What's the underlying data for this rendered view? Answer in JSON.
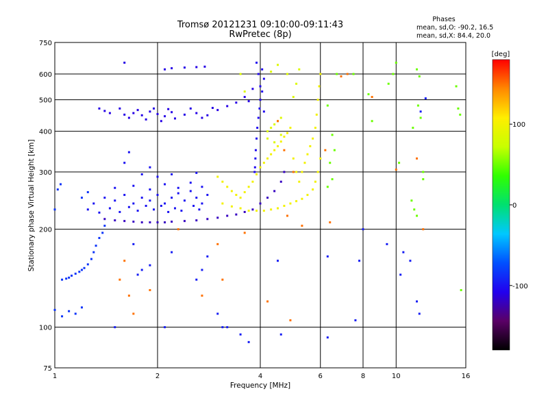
{
  "chart_data": {
    "type": "scatter",
    "title": "Tromsø 20121231 09:10:00-09:11:43",
    "subtitle": "RwPretec (8p)",
    "info": {
      "heading": "Phases",
      "line1": "mean, sd,O: -90.2, 16.5",
      "line2": "mean, sd,X:  84.4, 20.0"
    },
    "xlabel": "Frequency [MHz]",
    "ylabel": "Stationary phase Virtual Height [km]",
    "x_scale": "log",
    "y_scale": "log",
    "xlim": [
      1,
      16
    ],
    "ylim": [
      75,
      750
    ],
    "x_ticks": [
      1,
      2,
      4,
      6,
      8,
      10,
      16
    ],
    "x_tick_labels": [
      "1",
      "2",
      "4",
      "6",
      "8",
      "10",
      "16"
    ],
    "y_ticks": [
      75,
      100,
      200,
      300,
      400,
      500,
      600,
      750
    ],
    "y_tick_labels": [
      "75",
      "100",
      "200",
      "300",
      "400",
      "500",
      "600",
      "750"
    ],
    "grid": true,
    "colorbar": {
      "label": "[deg]",
      "range": [
        -180,
        180
      ],
      "ticks": [
        100,
        0,
        -100
      ],
      "tick_labels": [
        "100",
        "0",
        "-100"
      ],
      "colormap": [
        "#000000",
        "#5a0066",
        "#2200ee",
        "#0050ff",
        "#00c8ff",
        "#00e070",
        "#30ff00",
        "#c8ff00",
        "#ffee00",
        "#ff8800",
        "#ff0000"
      ]
    },
    "series": [
      {
        "values": [
          [
            1.6,
            450
          ],
          [
            1.7,
            455
          ],
          [
            1.8,
            448
          ],
          [
            1.9,
            460
          ],
          [
            2.0,
            452
          ],
          [
            2.1,
            445
          ],
          [
            2.2,
            458
          ],
          [
            2.4,
            450
          ],
          [
            2.6,
            455
          ],
          [
            2.8,
            448
          ],
          [
            1.55,
            470
          ],
          [
            1.65,
            440
          ],
          [
            1.75,
            465
          ],
          [
            1.85,
            435
          ],
          [
            1.95,
            470
          ],
          [
            2.05,
            430
          ],
          [
            2.15,
            468
          ],
          [
            2.25,
            438
          ],
          [
            2.5,
            470
          ],
          [
            2.7,
            440
          ],
          [
            1.35,
            470
          ],
          [
            1.4,
            462
          ],
          [
            1.45,
            455
          ],
          [
            2.9,
            472
          ],
          [
            3.0,
            465
          ],
          [
            3.2,
            478
          ],
          [
            3.4,
            490
          ],
          [
            3.6,
            510
          ],
          [
            3.7,
            495
          ],
          [
            3.8,
            540
          ],
          [
            2.1,
            620
          ],
          [
            2.2,
            625
          ],
          [
            2.4,
            628
          ],
          [
            2.6,
            630
          ],
          [
            2.75,
            632
          ],
          [
            1.6,
            650
          ]
        ],
        "phase": -110
      },
      {
        "values": [
          [
            1.3,
            240
          ],
          [
            1.4,
            250
          ],
          [
            1.5,
            245
          ],
          [
            1.6,
            255
          ],
          [
            1.7,
            240
          ],
          [
            1.8,
            250
          ],
          [
            1.9,
            245
          ],
          [
            2.0,
            255
          ],
          [
            2.1,
            240
          ],
          [
            2.2,
            250
          ],
          [
            2.3,
            258
          ],
          [
            2.4,
            245
          ],
          [
            2.5,
            262
          ],
          [
            2.6,
            250
          ],
          [
            2.7,
            240
          ],
          [
            2.8,
            255
          ],
          [
            1.25,
            230
          ],
          [
            1.35,
            225
          ],
          [
            1.45,
            232
          ],
          [
            1.55,
            226
          ],
          [
            1.65,
            234
          ],
          [
            1.75,
            228
          ],
          [
            1.85,
            236
          ],
          [
            1.95,
            230
          ],
          [
            2.05,
            236
          ],
          [
            2.15,
            226
          ],
          [
            2.25,
            232
          ],
          [
            2.35,
            228
          ],
          [
            2.55,
            236
          ],
          [
            2.65,
            230
          ],
          [
            1.5,
            268
          ],
          [
            1.7,
            272
          ],
          [
            1.9,
            265
          ],
          [
            2.1,
            275
          ],
          [
            2.3,
            268
          ],
          [
            2.5,
            278
          ],
          [
            2.7,
            270
          ],
          [
            1.8,
            295
          ],
          [
            2.0,
            290
          ],
          [
            2.2,
            295
          ],
          [
            2.6,
            298
          ],
          [
            1.6,
            320
          ],
          [
            1.65,
            345
          ],
          [
            1.9,
            310
          ]
        ],
        "phase": -100
      },
      {
        "values": [
          [
            1.1,
            142
          ],
          [
            1.15,
            146
          ],
          [
            1.2,
            150
          ],
          [
            1.25,
            156
          ],
          [
            1.28,
            162
          ],
          [
            1.3,
            170
          ],
          [
            1.32,
            178
          ],
          [
            1.35,
            188
          ],
          [
            1.38,
            195
          ],
          [
            1.4,
            205
          ],
          [
            1.05,
            140
          ],
          [
            1.08,
            141
          ],
          [
            1.12,
            144
          ],
          [
            1.18,
            148
          ],
          [
            1.22,
            152
          ],
          [
            1.0,
            113
          ],
          [
            1.05,
            108
          ],
          [
            1.1,
            112
          ],
          [
            1.15,
            110
          ],
          [
            1.2,
            115
          ],
          [
            1.0,
            230
          ],
          [
            1.02,
            265
          ],
          [
            1.04,
            275
          ],
          [
            1.2,
            250
          ],
          [
            1.25,
            260
          ]
        ],
        "phase": -85
      },
      {
        "values": [
          [
            1.4,
            215
          ],
          [
            1.5,
            213
          ],
          [
            1.6,
            212
          ],
          [
            1.7,
            211
          ],
          [
            1.8,
            210
          ],
          [
            1.9,
            210
          ],
          [
            2.0,
            210
          ],
          [
            2.1,
            210
          ],
          [
            2.2,
            211
          ],
          [
            2.4,
            212
          ],
          [
            2.6,
            213
          ],
          [
            2.8,
            215
          ],
          [
            3.0,
            217
          ],
          [
            3.2,
            220
          ],
          [
            3.4,
            222
          ],
          [
            3.6,
            226
          ],
          [
            3.8,
            230
          ],
          [
            4.0,
            240
          ],
          [
            4.2,
            250
          ],
          [
            4.4,
            262
          ],
          [
            4.6,
            280
          ],
          [
            4.7,
            300
          ]
        ],
        "phase": -120
      },
      {
        "values": [
          [
            3.9,
            650
          ],
          [
            3.95,
            600
          ],
          [
            4.0,
            550
          ],
          [
            4.0,
            500
          ],
          [
            3.98,
            470
          ],
          [
            3.95,
            440
          ],
          [
            3.92,
            410
          ],
          [
            3.9,
            380
          ],
          [
            3.88,
            350
          ],
          [
            3.87,
            330
          ],
          [
            3.86,
            310
          ],
          [
            3.85,
            300
          ],
          [
            4.05,
            620
          ],
          [
            4.1,
            580
          ],
          [
            4.05,
            530
          ],
          [
            4.1,
            460
          ]
        ],
        "phase": -105
      },
      {
        "values": [
          [
            3.0,
            290
          ],
          [
            3.1,
            280
          ],
          [
            3.2,
            270
          ],
          [
            3.3,
            262
          ],
          [
            3.4,
            255
          ],
          [
            3.5,
            250
          ],
          [
            3.6,
            260
          ],
          [
            3.7,
            270
          ],
          [
            3.8,
            280
          ],
          [
            3.9,
            295
          ],
          [
            4.0,
            310
          ],
          [
            4.1,
            320
          ],
          [
            4.2,
            330
          ],
          [
            4.3,
            340
          ],
          [
            4.4,
            350
          ],
          [
            4.5,
            360
          ],
          [
            4.6,
            372
          ],
          [
            4.7,
            385
          ],
          [
            4.8,
            395
          ],
          [
            4.9,
            410
          ],
          [
            5.0,
            330
          ],
          [
            5.1,
            300
          ],
          [
            5.2,
            280
          ],
          [
            5.3,
            300
          ],
          [
            5.4,
            320
          ],
          [
            5.5,
            340
          ],
          [
            5.6,
            360
          ],
          [
            5.7,
            380
          ],
          [
            5.8,
            410
          ],
          [
            5.85,
            450
          ],
          [
            5.9,
            500
          ],
          [
            5.95,
            550
          ],
          [
            6.0,
            600
          ],
          [
            3.1,
            240
          ],
          [
            3.3,
            235
          ],
          [
            3.5,
            232
          ],
          [
            3.7,
            228
          ],
          [
            3.9,
            228
          ],
          [
            4.1,
            228
          ],
          [
            4.3,
            230
          ],
          [
            4.5,
            232
          ],
          [
            4.7,
            236
          ],
          [
            4.9,
            240
          ],
          [
            5.1,
            244
          ],
          [
            5.3,
            248
          ],
          [
            5.5,
            255
          ],
          [
            5.7,
            265
          ],
          [
            5.8,
            280
          ],
          [
            5.9,
            300
          ],
          [
            6.0,
            330
          ]
        ],
        "phase": 100
      },
      {
        "values": [
          [
            4.2,
            400
          ],
          [
            4.3,
            410
          ],
          [
            4.4,
            420
          ],
          [
            4.5,
            430
          ],
          [
            4.6,
            440
          ],
          [
            4.2,
            380
          ],
          [
            4.4,
            370
          ],
          [
            4.6,
            390
          ],
          [
            4.8,
            600
          ],
          [
            4.5,
            640
          ],
          [
            4.3,
            610
          ],
          [
            3.5,
            600
          ],
          [
            3.6,
            530
          ],
          [
            5.0,
            510
          ],
          [
            5.1,
            560
          ],
          [
            5.2,
            620
          ]
        ],
        "phase": 85
      },
      {
        "values": [
          [
            6.3,
            270
          ],
          [
            6.5,
            285
          ],
          [
            6.4,
            320
          ],
          [
            6.6,
            350
          ],
          [
            6.3,
            480
          ],
          [
            6.5,
            390
          ],
          [
            6.7,
            600
          ],
          [
            7.5,
            600
          ],
          [
            8.3,
            520
          ],
          [
            8.5,
            430
          ],
          [
            9.5,
            560
          ],
          [
            9.8,
            600
          ],
          [
            10,
            650
          ],
          [
            10.2,
            320
          ],
          [
            11.2,
            410
          ],
          [
            11.6,
            480
          ],
          [
            11.8,
            440
          ],
          [
            11.7,
            590
          ],
          [
            11.5,
            620
          ],
          [
            12.0,
            300
          ],
          [
            11.1,
            245
          ],
          [
            11.3,
            230
          ],
          [
            12.0,
            285
          ],
          [
            11.5,
            220
          ],
          [
            15.0,
            550
          ],
          [
            15.2,
            470
          ],
          [
            15.4,
            450
          ],
          [
            15.5,
            130
          ]
        ],
        "phase": 50
      },
      {
        "values": [
          [
            6.3,
            165
          ],
          [
            6.3,
            93
          ],
          [
            7.8,
            160
          ],
          [
            7.6,
            105
          ],
          [
            8.0,
            200
          ],
          [
            9.4,
            180
          ],
          [
            10.3,
            145
          ],
          [
            10.5,
            170
          ],
          [
            11.0,
            160
          ],
          [
            11.5,
            120
          ],
          [
            11.7,
            110
          ],
          [
            11.8,
            460
          ],
          [
            12.2,
            505
          ],
          [
            3.0,
            110
          ],
          [
            3.1,
            100
          ],
          [
            3.2,
            100
          ],
          [
            3.5,
            95
          ],
          [
            3.7,
            90
          ],
          [
            4.6,
            95
          ],
          [
            4.5,
            160
          ],
          [
            1.7,
            180
          ],
          [
            1.75,
            145
          ],
          [
            1.8,
            150
          ],
          [
            1.9,
            155
          ],
          [
            2.2,
            170
          ],
          [
            2.6,
            140
          ],
          [
            2.7,
            150
          ],
          [
            2.8,
            165
          ],
          [
            2.1,
            100
          ],
          [
            1.5,
            100
          ]
        ],
        "phase": -95
      },
      {
        "values": [
          [
            1.55,
            140
          ],
          [
            1.6,
            160
          ],
          [
            1.65,
            125
          ],
          [
            1.7,
            110
          ],
          [
            2.3,
            200
          ],
          [
            3.0,
            180
          ],
          [
            3.6,
            195
          ],
          [
            4.5,
            430
          ],
          [
            4.7,
            350
          ],
          [
            4.8,
            220
          ],
          [
            5.0,
            300
          ],
          [
            5.3,
            205
          ],
          [
            6.4,
            210
          ],
          [
            6.9,
            590
          ],
          [
            7.2,
            600
          ],
          [
            8.5,
            510
          ],
          [
            10.0,
            305
          ],
          [
            11.5,
            330
          ],
          [
            12.0,
            200
          ],
          [
            4.9,
            105
          ],
          [
            4.2,
            120
          ],
          [
            3.1,
            140
          ],
          [
            2.7,
            125
          ],
          [
            1.9,
            130
          ],
          [
            6.2,
            350
          ]
        ],
        "phase": 150
      }
    ]
  }
}
